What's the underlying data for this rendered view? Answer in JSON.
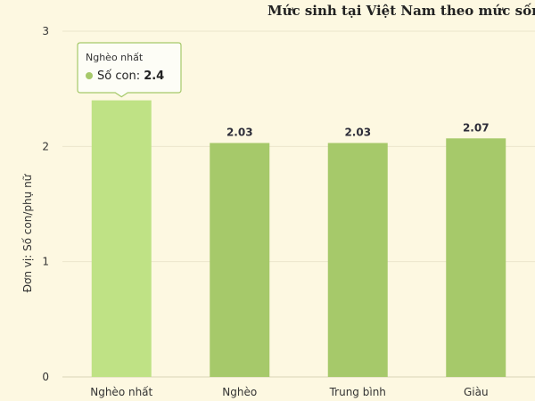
{
  "chart_data": {
    "type": "bar",
    "title": "Mức sinh tại Việt Nam theo mức sống",
    "ylabel": "Đơn vị: Số con/phụ nữ",
    "xlabel": "",
    "categories": [
      "Nghèo nhất",
      "Nghèo",
      "Trung bình",
      "Giàu"
    ],
    "series": [
      {
        "values": [
          2.4,
          2.03,
          2.03,
          2.07
        ]
      }
    ],
    "data_labels": [
      "2.4",
      "2.03",
      "2.03",
      "2.07"
    ],
    "ylim": [
      0,
      3
    ],
    "yticks": [
      "0",
      "1",
      "2",
      "3"
    ],
    "grid": true,
    "bar_color": "#a6c96a",
    "highlight_color": "#bfe285",
    "tooltip": {
      "category": "Nghèo nhất",
      "series_label": "Số con",
      "value": "2.4",
      "marker_color": "#a6c96a"
    }
  }
}
